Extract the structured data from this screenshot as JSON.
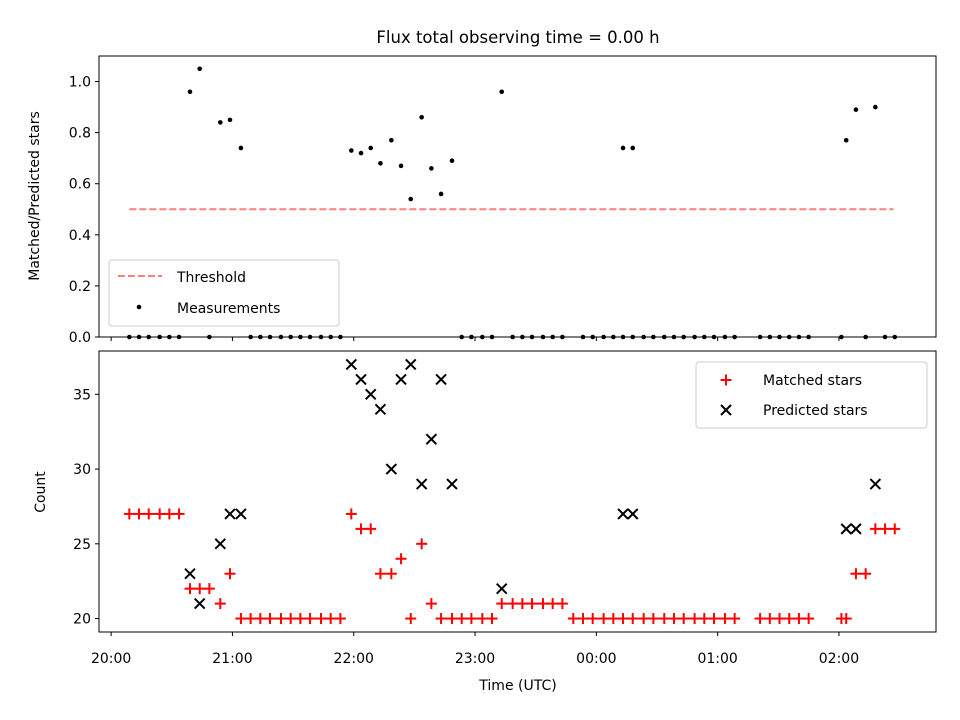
{
  "title": "Flux total observing time = 0.00 h",
  "chart_data": [
    {
      "type": "scatter",
      "ylabel": "Matched/Predicted stars",
      "ylim": [
        0,
        1.1
      ],
      "yticks": [
        0.0,
        0.2,
        0.4,
        0.6,
        0.8,
        1.0
      ],
      "ytick_labels": [
        "0.0",
        "0.2",
        "0.4",
        "0.6",
        "0.8",
        "1.0"
      ],
      "xlim_hours": [
        19.9,
        26.8
      ],
      "grid": false,
      "legend": {
        "placement": "lower-left",
        "threshold_label": "Threshold",
        "measurements_label": "Measurements"
      },
      "threshold": {
        "value": 0.5,
        "x_start": 20.15,
        "x_end": 26.45,
        "color": "#ff7f7f"
      },
      "measurements": {
        "color": "#000000",
        "x": [
          20.65,
          20.73,
          20.9,
          20.98,
          21.07,
          21.98,
          22.06,
          22.14,
          22.22,
          22.31,
          22.39,
          22.47,
          22.56,
          22.64,
          22.72,
          22.81,
          23.22,
          24.22,
          24.3,
          26.06,
          26.14,
          26.3,
          20.15,
          20.23,
          20.31,
          20.4,
          20.48,
          20.56,
          20.81,
          21.15,
          21.23,
          21.31,
          21.4,
          21.48,
          21.56,
          21.64,
          21.73,
          21.81,
          21.89,
          22.89,
          22.97,
          23.06,
          23.14,
          23.31,
          23.39,
          23.47,
          23.56,
          23.64,
          23.72,
          23.89,
          23.97,
          24.06,
          24.14,
          24.22,
          24.3,
          24.39,
          24.47,
          24.56,
          24.64,
          24.72,
          24.81,
          24.89,
          24.97,
          25.06,
          25.14,
          25.35,
          25.43,
          25.51,
          25.59,
          25.67,
          25.75,
          26.02,
          26.22,
          26.38,
          26.46
        ],
        "y": [
          0.96,
          1.05,
          0.84,
          0.85,
          0.74,
          0.73,
          0.72,
          0.74,
          0.68,
          0.77,
          0.67,
          0.54,
          0.86,
          0.66,
          0.56,
          0.69,
          0.96,
          0.74,
          0.74,
          0.77,
          0.89,
          0.9,
          0,
          0,
          0,
          0,
          0,
          0,
          0,
          0,
          0,
          0,
          0,
          0,
          0,
          0,
          0,
          0,
          0,
          0,
          0,
          0,
          0,
          0,
          0,
          0,
          0,
          0,
          0,
          0,
          0,
          0,
          0,
          0,
          0,
          0,
          0,
          0,
          0,
          0,
          0,
          0,
          0,
          0,
          0,
          0,
          0,
          0,
          0,
          0,
          0,
          0,
          0,
          0,
          0
        ]
      }
    },
    {
      "type": "scatter",
      "xlabel": "Time (UTC)",
      "ylabel": "Count",
      "ylim": [
        19.1,
        37.9
      ],
      "yticks": [
        20,
        25,
        30,
        35
      ],
      "ytick_labels": [
        "20",
        "25",
        "30",
        "35"
      ],
      "xlim_hours": [
        19.9,
        26.8
      ],
      "xticks_hours": [
        20,
        21,
        22,
        23,
        24,
        25,
        26
      ],
      "xtick_labels": [
        "20:00",
        "21:00",
        "22:00",
        "23:00",
        "00:00",
        "01:00",
        "02:00"
      ],
      "grid": false,
      "legend": {
        "placement": "upper-right"
      },
      "series": [
        {
          "name": "Matched stars",
          "marker": "+",
          "color": "#ff0000",
          "x": [
            20.15,
            20.23,
            20.31,
            20.4,
            20.48,
            20.56,
            20.65,
            20.73,
            20.81,
            20.9,
            20.98,
            21.07,
            21.15,
            21.23,
            21.31,
            21.4,
            21.48,
            21.56,
            21.64,
            21.73,
            21.81,
            21.89,
            21.98,
            22.06,
            22.14,
            22.22,
            22.31,
            22.39,
            22.47,
            22.56,
            22.64,
            22.72,
            22.81,
            22.89,
            22.97,
            23.06,
            23.14,
            23.22,
            23.31,
            23.39,
            23.47,
            23.56,
            23.64,
            23.72,
            23.81,
            23.89,
            23.97,
            24.06,
            24.14,
            24.22,
            24.3,
            24.39,
            24.47,
            24.56,
            24.64,
            24.72,
            24.81,
            24.89,
            24.97,
            25.06,
            25.14,
            25.35,
            25.43,
            25.51,
            25.59,
            25.67,
            25.75,
            26.02,
            26.06,
            26.14,
            26.22,
            26.3,
            26.38,
            26.46
          ],
          "y": [
            27,
            27,
            27,
            27,
            27,
            27,
            22,
            22,
            22,
            21,
            23,
            20,
            20,
            20,
            20,
            20,
            20,
            20,
            20,
            20,
            20,
            20,
            27,
            26,
            26,
            23,
            23,
            24,
            20,
            25,
            21,
            20,
            20,
            20,
            20,
            20,
            20,
            21,
            21,
            21,
            21,
            21,
            21,
            21,
            20,
            20,
            20,
            20,
            20,
            20,
            20,
            20,
            20,
            20,
            20,
            20,
            20,
            20,
            20,
            20,
            20,
            20,
            20,
            20,
            20,
            20,
            20,
            20,
            20,
            23,
            23,
            26,
            26,
            26
          ]
        },
        {
          "name": "Predicted stars",
          "marker": "x",
          "color": "#000000",
          "x": [
            20.65,
            20.73,
            20.9,
            20.98,
            21.07,
            21.98,
            22.06,
            22.14,
            22.22,
            22.31,
            22.39,
            22.47,
            22.56,
            22.64,
            22.72,
            22.81,
            23.22,
            24.22,
            24.3,
            26.06,
            26.14,
            26.3
          ],
          "y": [
            23,
            21,
            25,
            27,
            27,
            37,
            36,
            35,
            34,
            30,
            36,
            37,
            29,
            32,
            36,
            29,
            22,
            27,
            27,
            26,
            26,
            29
          ]
        }
      ]
    }
  ]
}
